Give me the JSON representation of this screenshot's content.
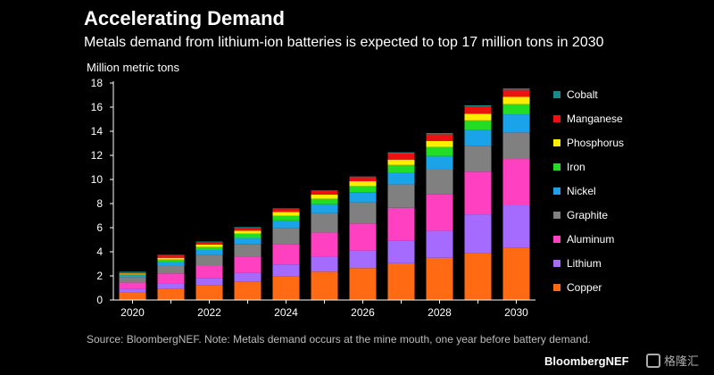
{
  "title": "Accelerating Demand",
  "subtitle": "Metals demand from lithium-ion batteries is expected to top 17 million tons in 2030",
  "source_note": "Source: BloombergNEF. Note: Metals demand occurs at the mine mouth, one year before battery demand.",
  "brand": "BloombergNEF",
  "watermark_text": "格隆汇",
  "chart_data": {
    "type": "bar",
    "stacked": true,
    "title": "Accelerating Demand",
    "subtitle": "Metals demand from lithium-ion batteries is expected to top 17 million tons in 2030",
    "xlabel": "",
    "ylabel": "Million metric tons",
    "ylim": [
      0,
      18
    ],
    "yticks": [
      0,
      2,
      4,
      6,
      8,
      10,
      12,
      14,
      16,
      18
    ],
    "categories": [
      "2020",
      "2021",
      "2022",
      "2023",
      "2024",
      "2025",
      "2026",
      "2027",
      "2028",
      "2029",
      "2030"
    ],
    "x_tick_labels": [
      "2020",
      "",
      "2022",
      "",
      "2024",
      "",
      "2026",
      "",
      "2028",
      "",
      "2030"
    ],
    "grid": false,
    "legend_position": "right",
    "series": [
      {
        "name": "Copper",
        "color": "#ff6a13",
        "values": [
          0.6,
          0.95,
          1.2,
          1.5,
          1.95,
          2.35,
          2.65,
          3.05,
          3.5,
          3.9,
          4.35
        ]
      },
      {
        "name": "Lithium",
        "color": "#a56bff",
        "values": [
          0.3,
          0.45,
          0.6,
          0.75,
          1.0,
          1.25,
          1.45,
          1.9,
          2.25,
          3.2,
          3.5
        ]
      },
      {
        "name": "Aluminum",
        "color": "#ff40c0",
        "values": [
          0.55,
          0.8,
          1.05,
          1.35,
          1.65,
          2.0,
          2.25,
          2.7,
          3.0,
          3.55,
          3.85
        ]
      },
      {
        "name": "Graphite",
        "color": "#808080",
        "values": [
          0.45,
          0.65,
          0.9,
          1.05,
          1.35,
          1.6,
          1.75,
          1.95,
          2.1,
          2.15,
          2.2
        ]
      },
      {
        "name": "Nickel",
        "color": "#1aa3e8",
        "values": [
          0.15,
          0.3,
          0.4,
          0.5,
          0.65,
          0.75,
          0.85,
          0.95,
          1.1,
          1.3,
          1.5
        ]
      },
      {
        "name": "Iron",
        "color": "#22dd22",
        "values": [
          0.1,
          0.2,
          0.25,
          0.35,
          0.4,
          0.45,
          0.5,
          0.65,
          0.75,
          0.8,
          0.85
        ]
      },
      {
        "name": "Phosphorus",
        "color": "#ffee00",
        "values": [
          0.05,
          0.15,
          0.2,
          0.25,
          0.3,
          0.35,
          0.4,
          0.45,
          0.5,
          0.55,
          0.6
        ]
      },
      {
        "name": "Manganese",
        "color": "#ee1111",
        "values": [
          0.1,
          0.2,
          0.2,
          0.25,
          0.25,
          0.3,
          0.35,
          0.5,
          0.55,
          0.6,
          0.6
        ]
      },
      {
        "name": "Cobalt",
        "color": "#148c8c",
        "values": [
          0.05,
          0.05,
          0.05,
          0.05,
          0.05,
          0.05,
          0.05,
          0.1,
          0.1,
          0.1,
          0.1
        ]
      }
    ],
    "legend_order": [
      "Cobalt",
      "Manganese",
      "Phosphorus",
      "Iron",
      "Nickel",
      "Graphite",
      "Aluminum",
      "Lithium",
      "Copper"
    ]
  }
}
